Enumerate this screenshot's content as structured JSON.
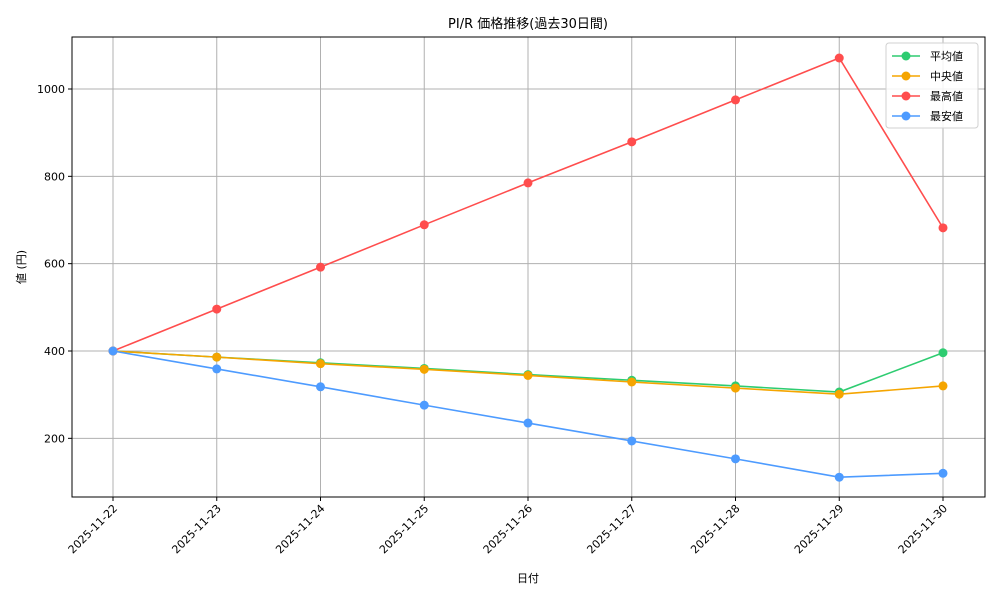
{
  "chart_data": {
    "type": "line",
    "title": "PI/R 価格推移(過去30日間)",
    "xlabel": "日付",
    "ylabel": "値 (円)",
    "categories": [
      "2025-11-22",
      "2025-11-23",
      "2025-11-24",
      "2025-11-25",
      "2025-11-26",
      "2025-11-27",
      "2025-11-28",
      "2025-11-29",
      "2025-11-30"
    ],
    "ylim": [
      60,
      1120
    ],
    "yticks": [
      200,
      400,
      600,
      800,
      1000
    ],
    "grid": true,
    "legend_position": "upper right",
    "series": [
      {
        "name": "平均値",
        "color": "#2ecc71",
        "values": [
          400,
          386,
          373,
          360,
          346,
          333,
          320,
          306,
          396
        ]
      },
      {
        "name": "中央値",
        "color": "#f5a500",
        "values": [
          400,
          386,
          371,
          358,
          344,
          329,
          315,
          301,
          320
        ]
      },
      {
        "name": "最高値",
        "color": "#ff4d4d",
        "values": [
          400,
          496,
          592,
          689,
          785,
          879,
          975,
          1071,
          682
        ]
      },
      {
        "name": "最安値",
        "color": "#4d9bff",
        "values": [
          400,
          359,
          318,
          276,
          235,
          194,
          153,
          111,
          120
        ]
      }
    ]
  }
}
